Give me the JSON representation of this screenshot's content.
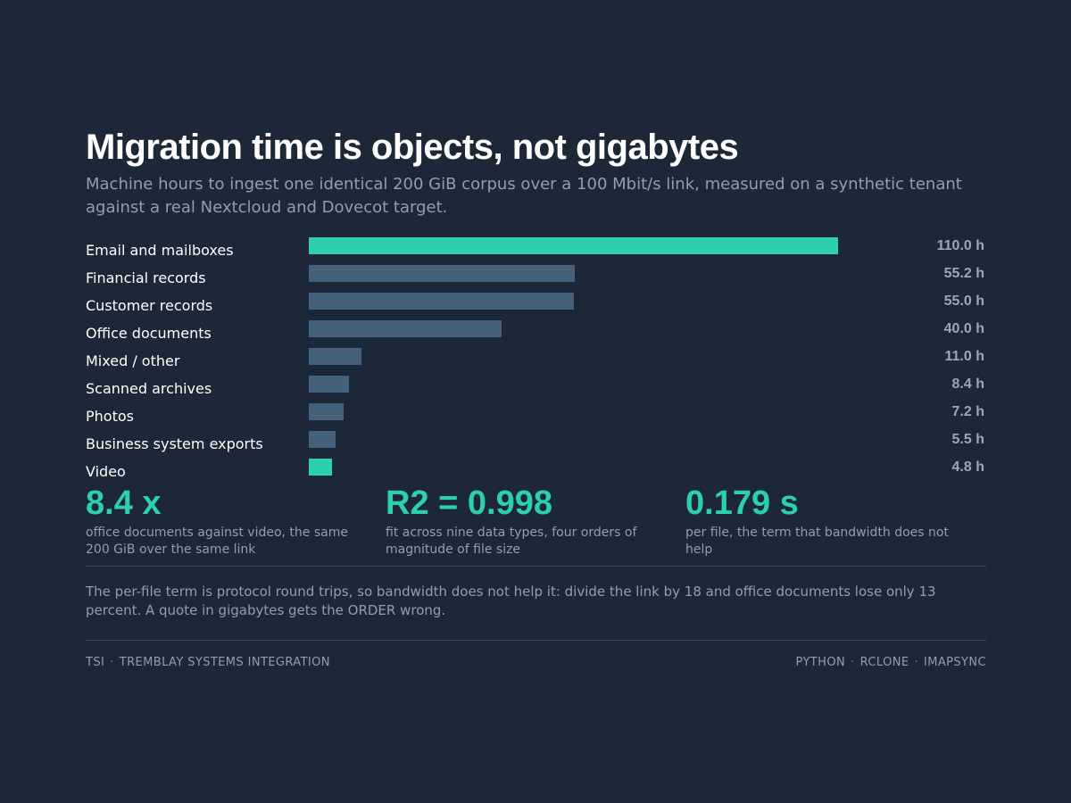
{
  "header": {
    "title": "Migration time is objects, not gigabytes",
    "subtitle": "Machine hours to ingest one identical 200 GiB corpus over a 100 Mbit/s link, measured on a synthetic tenant against a real Nextcloud and Dovecot target."
  },
  "chart_data": {
    "type": "bar",
    "orientation": "horizontal",
    "categories": [
      "Email and mailboxes",
      "Financial records",
      "Customer records",
      "Office documents",
      "Mixed / other",
      "Scanned archives",
      "Photos",
      "Business system exports",
      "Video"
    ],
    "values": [
      110.0,
      55.2,
      55.0,
      40.0,
      11.0,
      8.4,
      7.2,
      5.5,
      4.8
    ],
    "value_labels": [
      "110.0 h",
      "55.2 h",
      "55.0 h",
      "40.0 h",
      "11.0 h",
      "8.4 h",
      "7.2 h",
      "5.5 h",
      "4.8 h"
    ],
    "highlighted": [
      "Email and mailboxes",
      "Video"
    ],
    "xlim": [
      0,
      110
    ],
    "grid": false,
    "colors": {
      "bar": "#45607a",
      "highlight": "#2ecfab"
    }
  },
  "stats": [
    {
      "value": "8.4 x",
      "caption": "office documents against video, the same 200 GiB over the same link"
    },
    {
      "value": "R2 = 0.998",
      "caption": "fit across nine data types, four orders of magnitude of file size"
    },
    {
      "value": "0.179 s",
      "caption": "per file, the term that bandwidth does not help"
    }
  ],
  "note": "The per-file term is protocol round trips, so bandwidth does not help it: divide the link by 18 and office documents lose only 13 percent. A quote in gigabytes gets the ORDER wrong.",
  "footer": {
    "left": [
      "TSI",
      "TREMBLAY SYSTEMS INTEGRATION"
    ],
    "right": [
      "PYTHON",
      "RCLONE",
      "IMAPSYNC"
    ],
    "separator": "·"
  },
  "colors": {
    "background": "#1c2837",
    "accent": "#2ecfab",
    "muted_text": "#8e9fb1"
  }
}
